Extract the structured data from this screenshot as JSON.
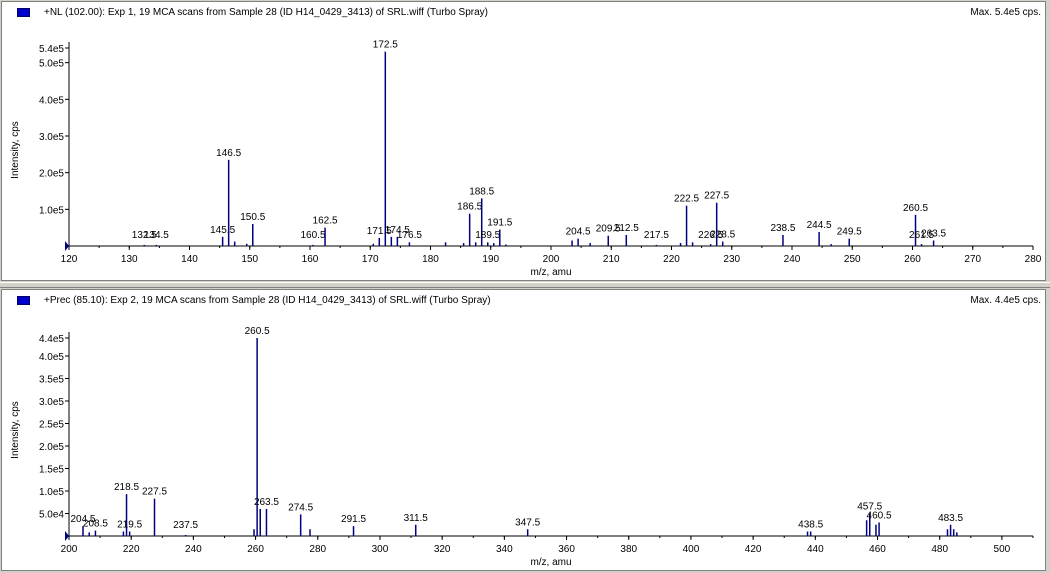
{
  "panels": [
    {
      "title": "+NL (102.00): Exp 1, 19 MCA scans from Sample 28 (ID H14_0429_3413) of SRL.wiff (Turbo Spray)",
      "max_label": "Max. 5.4e5 cps.",
      "ylabel": "Intensity, cps",
      "xlabel": "m/z, amu",
      "color": "#000080"
    },
    {
      "title": "+Prec (85.10): Exp 2, 19 MCA scans from Sample 28 (ID H14_0429_3413) of SRL.wiff (Turbo Spray)",
      "max_label": "Max. 4.4e5 cps.",
      "ylabel": "Intensity, cps",
      "xlabel": "m/z, amu",
      "color": "#000080"
    }
  ],
  "chart_data": [
    {
      "type": "bar",
      "xlabel": "m/z, amu",
      "ylabel": "Intensity, cps",
      "xlim": [
        120,
        280
      ],
      "ylim": [
        0,
        540000
      ],
      "xticks": [
        120,
        130,
        140,
        150,
        160,
        170,
        180,
        190,
        200,
        210,
        220,
        230,
        240,
        250,
        260,
        270,
        280
      ],
      "yticks": [
        {
          "value": 100000,
          "label": "1.0e5"
        },
        {
          "value": 200000,
          "label": "2.0e5"
        },
        {
          "value": 300000,
          "label": "3.0e5"
        },
        {
          "value": 400000,
          "label": "4.0e5"
        },
        {
          "value": 500000,
          "label": "5.0e5"
        },
        {
          "value": 540000,
          "label": "5.4e5"
        }
      ],
      "peaks": [
        {
          "x": 132.5,
          "y": 3000,
          "label": "132.5"
        },
        {
          "x": 134.5,
          "y": 3000,
          "label": "134.5"
        },
        {
          "x": 145.5,
          "y": 25000,
          "label": "145.5"
        },
        {
          "x": 146.5,
          "y": 235000,
          "label": "146.5"
        },
        {
          "x": 147.5,
          "y": 12000
        },
        {
          "x": 149.5,
          "y": 6000
        },
        {
          "x": 150.5,
          "y": 60000,
          "label": "150.5"
        },
        {
          "x": 160.5,
          "y": 3000,
          "label": "160.5"
        },
        {
          "x": 162.5,
          "y": 50000,
          "label": "162.5"
        },
        {
          "x": 170.5,
          "y": 6000
        },
        {
          "x": 171.5,
          "y": 22000,
          "label": "171.5"
        },
        {
          "x": 172.5,
          "y": 530000,
          "label": "172.5"
        },
        {
          "x": 173.5,
          "y": 25000
        },
        {
          "x": 174.5,
          "y": 25000,
          "label": "174.5"
        },
        {
          "x": 176.5,
          "y": 10000,
          "label": "176.5"
        },
        {
          "x": 182.5,
          "y": 10000
        },
        {
          "x": 185.5,
          "y": 8000
        },
        {
          "x": 186.5,
          "y": 88000,
          "label": "186.5"
        },
        {
          "x": 187.5,
          "y": 10000
        },
        {
          "x": 188.5,
          "y": 130000,
          "label": "188.5"
        },
        {
          "x": 189.5,
          "y": 10000,
          "label": "189.5"
        },
        {
          "x": 190.5,
          "y": 8000
        },
        {
          "x": 191.5,
          "y": 45000,
          "label": "191.5"
        },
        {
          "x": 192.5,
          "y": 4000
        },
        {
          "x": 203.5,
          "y": 15000
        },
        {
          "x": 204.5,
          "y": 20000,
          "label": "204.5"
        },
        {
          "x": 206.5,
          "y": 8000
        },
        {
          "x": 209.5,
          "y": 28000,
          "label": "209.5"
        },
        {
          "x": 212.5,
          "y": 30000,
          "label": "212.5"
        },
        {
          "x": 217.5,
          "y": 3000,
          "label": "217.5"
        },
        {
          "x": 221.5,
          "y": 8000
        },
        {
          "x": 222.5,
          "y": 110000,
          "label": "222.5"
        },
        {
          "x": 223.5,
          "y": 10000
        },
        {
          "x": 226.5,
          "y": 5000,
          "label": "226.5"
        },
        {
          "x": 227.5,
          "y": 118000,
          "label": "227.5"
        },
        {
          "x": 228.5,
          "y": 12000,
          "label": "228.5"
        },
        {
          "x": 238.5,
          "y": 30000,
          "label": "238.5"
        },
        {
          "x": 244.5,
          "y": 38000,
          "label": "244.5"
        },
        {
          "x": 246.5,
          "y": 5000
        },
        {
          "x": 249.5,
          "y": 20000,
          "label": "249.5"
        },
        {
          "x": 260.5,
          "y": 85000,
          "label": "260.5"
        },
        {
          "x": 261.5,
          "y": 5000,
          "label": "261.5"
        },
        {
          "x": 263.5,
          "y": 15000,
          "label": "263.5"
        }
      ]
    },
    {
      "type": "bar",
      "xlabel": "m/z, amu",
      "ylabel": "Intensity, cps",
      "xlim": [
        200,
        510
      ],
      "ylim": [
        0,
        440000
      ],
      "xticks": [
        200,
        220,
        240,
        260,
        280,
        300,
        320,
        340,
        360,
        380,
        400,
        420,
        440,
        460,
        480,
        500
      ],
      "yticks": [
        {
          "value": 50000,
          "label": "5.0e4"
        },
        {
          "value": 100000,
          "label": "1.0e5"
        },
        {
          "value": 150000,
          "label": "1.5e5"
        },
        {
          "value": 200000,
          "label": "2.0e5"
        },
        {
          "value": 250000,
          "label": "2.5e5"
        },
        {
          "value": 300000,
          "label": "3.0e5"
        },
        {
          "value": 350000,
          "label": "3.5e5"
        },
        {
          "value": 400000,
          "label": "4.0e5"
        },
        {
          "value": 440000,
          "label": "4.4e5"
        }
      ],
      "peaks": [
        {
          "x": 204.5,
          "y": 22000,
          "label": "204.5"
        },
        {
          "x": 206.5,
          "y": 8000
        },
        {
          "x": 208.5,
          "y": 12000,
          "label": "208.5"
        },
        {
          "x": 217.5,
          "y": 10000
        },
        {
          "x": 218.5,
          "y": 93000,
          "label": "218.5"
        },
        {
          "x": 219.5,
          "y": 10000,
          "label": "219.5"
        },
        {
          "x": 227.5,
          "y": 83000,
          "label": "227.5"
        },
        {
          "x": 237.5,
          "y": 2000,
          "label": "237.5"
        },
        {
          "x": 259.5,
          "y": 15000
        },
        {
          "x": 260.5,
          "y": 440000,
          "label": "260.5"
        },
        {
          "x": 261.5,
          "y": 60000
        },
        {
          "x": 263.5,
          "y": 60000,
          "label": "263.5"
        },
        {
          "x": 274.5,
          "y": 48000,
          "label": "274.5"
        },
        {
          "x": 277.5,
          "y": 15000
        },
        {
          "x": 291.5,
          "y": 22000,
          "label": "291.5"
        },
        {
          "x": 311.5,
          "y": 25000,
          "label": "311.5"
        },
        {
          "x": 347.5,
          "y": 15000,
          "label": "347.5"
        },
        {
          "x": 437.5,
          "y": 10000
        },
        {
          "x": 438.5,
          "y": 10000,
          "label": "438.5"
        },
        {
          "x": 456.5,
          "y": 35000
        },
        {
          "x": 457.5,
          "y": 50000,
          "label": "457.5"
        },
        {
          "x": 459.5,
          "y": 25000
        },
        {
          "x": 460.5,
          "y": 30000,
          "label": "460.5"
        },
        {
          "x": 482.5,
          "y": 15000
        },
        {
          "x": 483.5,
          "y": 25000,
          "label": "483.5"
        },
        {
          "x": 484.5,
          "y": 15000
        },
        {
          "x": 485.5,
          "y": 8000
        }
      ]
    }
  ]
}
